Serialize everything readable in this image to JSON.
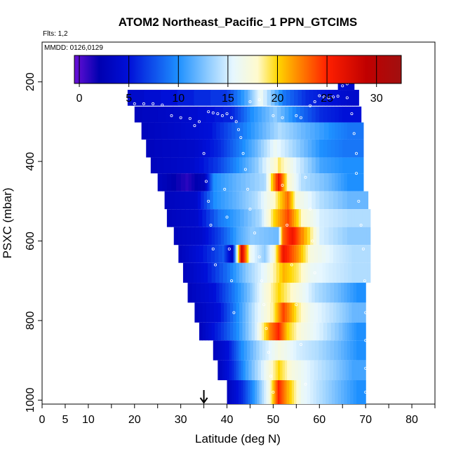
{
  "chart_data": {
    "type": "heatmap",
    "title": "ATOM2 Northeast_Pacific_1 PPN_GTCIMS",
    "flights_label": "Flts: 1,2",
    "dates_label": "MMDD: 0126,0129",
    "xlabel": "Latitude (deg N)",
    "ylabel": "PSXC (mbar)",
    "xlim": [
      0,
      85
    ],
    "ylim": [
      1010,
      100
    ],
    "x_tick_labels": [
      "0",
      "5",
      "10",
      "20",
      "30",
      "40",
      "50",
      "60",
      "70",
      "80"
    ],
    "x_tick_values": [
      0,
      5,
      10,
      20,
      30,
      40,
      50,
      60,
      70,
      80
    ],
    "x_minor_ticks": [
      15,
      25,
      35,
      45,
      55,
      65,
      75,
      85
    ],
    "y_tick_labels": [
      "200",
      "400",
      "600",
      "800",
      "1000"
    ],
    "y_tick_values": [
      200,
      400,
      600,
      800,
      1000
    ],
    "colorbar": {
      "min": -0.5,
      "max": 32.5,
      "tick_labels": [
        "0",
        "5",
        "10",
        "15",
        "20",
        "25",
        "30"
      ],
      "tick_values": [
        0,
        5,
        10,
        15,
        20,
        25,
        30
      ],
      "colors": [
        "#6a0fd6",
        "#0000b0",
        "#0010d8",
        "#1e90ff",
        "#8ecbff",
        "#e6f7ff",
        "#fffacd",
        "#ffd700",
        "#ff8c00",
        "#ff2000",
        "#c00000",
        "#a01010"
      ],
      "color_stops": [
        -0.5,
        2,
        5,
        10,
        13,
        15.5,
        18,
        20,
        22,
        25,
        29,
        32.5
      ]
    },
    "marker_lat": 35,
    "pressure_bands": [
      {
        "p_top": 220,
        "p_bot": 260,
        "lat_start": 18.5,
        "lat_end": 68.5,
        "segments": [
          [
            18.5,
            4
          ],
          [
            40,
            7
          ],
          [
            44.5,
            12
          ],
          [
            47,
            16
          ],
          [
            52,
            9
          ],
          [
            57,
            6
          ],
          [
            62,
            5
          ],
          [
            66,
            4
          ]
        ]
      },
      {
        "p_top": 170,
        "p_bot": 220,
        "lat_start": 64,
        "lat_end": 67.5,
        "segments": [
          [
            64,
            4
          ]
        ]
      },
      {
        "p_top": 262,
        "p_bot": 302,
        "lat_start": 20,
        "lat_end": 69,
        "segments": [
          [
            20,
            3
          ],
          [
            30,
            4
          ],
          [
            41,
            6
          ],
          [
            45,
            10
          ],
          [
            50,
            13
          ],
          [
            55,
            9
          ],
          [
            60,
            6
          ],
          [
            65,
            5
          ]
        ]
      },
      {
        "p_top": 302,
        "p_bot": 345,
        "lat_start": 21.5,
        "lat_end": 69.5,
        "segments": [
          [
            21.5,
            3
          ],
          [
            30,
            4
          ],
          [
            36,
            5
          ],
          [
            41,
            8
          ],
          [
            46,
            11
          ],
          [
            51,
            14
          ],
          [
            56,
            12
          ],
          [
            62,
            10
          ],
          [
            66,
            9
          ]
        ]
      },
      {
        "p_top": 345,
        "p_bot": 390,
        "lat_start": 22.5,
        "lat_end": 69.5,
        "segments": [
          [
            22.5,
            3
          ],
          [
            33,
            4
          ],
          [
            38,
            6
          ],
          [
            42,
            9
          ],
          [
            46,
            12
          ],
          [
            50,
            16
          ],
          [
            55,
            13
          ],
          [
            60,
            10
          ],
          [
            65,
            9
          ]
        ]
      },
      {
        "p_top": 390,
        "p_bot": 430,
        "lat_start": 23.5,
        "lat_end": 69.5,
        "segments": [
          [
            23.5,
            3
          ],
          [
            32,
            4
          ],
          [
            38,
            7
          ],
          [
            42,
            10
          ],
          [
            46,
            13
          ],
          [
            51,
            19
          ],
          [
            55,
            15
          ],
          [
            60,
            11
          ],
          [
            65,
            10
          ]
        ]
      },
      {
        "p_top": 430,
        "p_bot": 475,
        "lat_start": 25,
        "lat_end": 69.5,
        "segments": [
          [
            25,
            3
          ],
          [
            31,
            1
          ],
          [
            35,
            3
          ],
          [
            37,
            10
          ],
          [
            42,
            12
          ],
          [
            48,
            14
          ],
          [
            51,
            26
          ],
          [
            53,
            18
          ],
          [
            56,
            14
          ],
          [
            62,
            12
          ],
          [
            66,
            10
          ]
        ]
      },
      {
        "p_top": 475,
        "p_bot": 520,
        "lat_start": 26.5,
        "lat_end": 70.5,
        "segments": [
          [
            26.5,
            3
          ],
          [
            33,
            4
          ],
          [
            37,
            10
          ],
          [
            42,
            12
          ],
          [
            46,
            14
          ],
          [
            50,
            18
          ],
          [
            53,
            23
          ],
          [
            55,
            17
          ],
          [
            60,
            14
          ],
          [
            66,
            12
          ]
        ]
      },
      {
        "p_top": 520,
        "p_bot": 565,
        "lat_start": 27,
        "lat_end": 71,
        "segments": [
          [
            27,
            3
          ],
          [
            33,
            4
          ],
          [
            38,
            9
          ],
          [
            42,
            11
          ],
          [
            47,
            14
          ],
          [
            50,
            20
          ],
          [
            53,
            24
          ],
          [
            56,
            18
          ],
          [
            60,
            15
          ],
          [
            66,
            14
          ]
        ]
      },
      {
        "p_top": 565,
        "p_bot": 610,
        "lat_start": 28.5,
        "lat_end": 71,
        "segments": [
          [
            28.5,
            3
          ],
          [
            34,
            4
          ],
          [
            38,
            7
          ],
          [
            42,
            11
          ],
          [
            45,
            13
          ],
          [
            51,
            12
          ],
          [
            52,
            23
          ],
          [
            54,
            26
          ],
          [
            56,
            22
          ],
          [
            60,
            15
          ],
          [
            66,
            13
          ]
        ]
      },
      {
        "p_top": 610,
        "p_bot": 655,
        "lat_start": 29.5,
        "lat_end": 71,
        "segments": [
          [
            29.5,
            3
          ],
          [
            34,
            5
          ],
          [
            39,
            8
          ],
          [
            41,
            3
          ],
          [
            43,
            28
          ],
          [
            45,
            16
          ],
          [
            48,
            13
          ],
          [
            50,
            17
          ],
          [
            52,
            26
          ],
          [
            55,
            22
          ],
          [
            58,
            17
          ],
          [
            63,
            15
          ],
          [
            67,
            14
          ]
        ]
      },
      {
        "p_top": 655,
        "p_bot": 705,
        "lat_start": 30.5,
        "lat_end": 71,
        "segments": [
          [
            30.5,
            3
          ],
          [
            35,
            5
          ],
          [
            40,
            9
          ],
          [
            44,
            13
          ],
          [
            48,
            16
          ],
          [
            52,
            21
          ],
          [
            55,
            19
          ],
          [
            58,
            16
          ],
          [
            62,
            15
          ],
          [
            67,
            14
          ]
        ]
      },
      {
        "p_top": 705,
        "p_bot": 755,
        "lat_start": 31.5,
        "lat_end": 70,
        "segments": [
          [
            31.5,
            3
          ],
          [
            37,
            5
          ],
          [
            41,
            9
          ],
          [
            45,
            13
          ],
          [
            48,
            17
          ],
          [
            51,
            20
          ],
          [
            55,
            17
          ],
          [
            59,
            14
          ],
          [
            64,
            12
          ],
          [
            68,
            10
          ]
        ]
      },
      {
        "p_top": 755,
        "p_bot": 805,
        "lat_start": 33,
        "lat_end": 70,
        "segments": [
          [
            33,
            3
          ],
          [
            38,
            5
          ],
          [
            42,
            10
          ],
          [
            46,
            15
          ],
          [
            50,
            19
          ],
          [
            52,
            24
          ],
          [
            55,
            19
          ],
          [
            58,
            16
          ],
          [
            63,
            14
          ],
          [
            67,
            12
          ]
        ]
      },
      {
        "p_top": 805,
        "p_bot": 850,
        "lat_start": 34,
        "lat_end": 70,
        "segments": [
          [
            34,
            3
          ],
          [
            38,
            6
          ],
          [
            42,
            10
          ],
          [
            46,
            15
          ],
          [
            49,
            22
          ],
          [
            51,
            25
          ],
          [
            53,
            20
          ],
          [
            56,
            17
          ],
          [
            60,
            15
          ],
          [
            65,
            12
          ],
          [
            68,
            10
          ]
        ]
      },
      {
        "p_top": 850,
        "p_bot": 900,
        "lat_start": 37,
        "lat_end": 70,
        "segments": [
          [
            37,
            3
          ],
          [
            40,
            5
          ],
          [
            43,
            10
          ],
          [
            47,
            14
          ],
          [
            51,
            17
          ],
          [
            55,
            15
          ],
          [
            59,
            14
          ],
          [
            64,
            12
          ],
          [
            68,
            10
          ]
        ]
      },
      {
        "p_top": 900,
        "p_bot": 950,
        "lat_start": 38,
        "lat_end": 70,
        "segments": [
          [
            38,
            3
          ],
          [
            41,
            6
          ],
          [
            44,
            11
          ],
          [
            48,
            16
          ],
          [
            51,
            20
          ],
          [
            54,
            17
          ],
          [
            58,
            15
          ],
          [
            63,
            13
          ],
          [
            67,
            11
          ]
        ]
      },
      {
        "p_top": 950,
        "p_bot": 1010,
        "lat_start": 40,
        "lat_end": 70,
        "segments": [
          [
            40,
            3
          ],
          [
            43,
            6
          ],
          [
            46,
            11
          ],
          [
            49,
            17
          ],
          [
            51,
            25
          ],
          [
            53,
            21
          ],
          [
            56,
            16
          ],
          [
            60,
            14
          ],
          [
            64,
            12
          ],
          [
            68,
            10
          ]
        ]
      }
    ],
    "flight_track": [
      [
        18,
        255
      ],
      [
        20,
        255
      ],
      [
        22,
        255
      ],
      [
        24,
        255
      ],
      [
        26,
        258
      ],
      [
        28,
        285
      ],
      [
        30,
        290
      ],
      [
        32,
        292
      ],
      [
        33,
        310
      ],
      [
        34,
        300
      ],
      [
        35,
        380
      ],
      [
        35.5,
        450
      ],
      [
        36,
        500
      ],
      [
        36.5,
        560
      ],
      [
        37,
        620
      ],
      [
        37.5,
        660
      ],
      [
        36,
        275
      ],
      [
        37,
        278
      ],
      [
        38,
        280
      ],
      [
        39,
        285
      ],
      [
        40,
        280
      ],
      [
        41,
        290
      ],
      [
        42,
        300
      ],
      [
        42.5,
        320
      ],
      [
        43,
        340
      ],
      [
        43.5,
        380
      ],
      [
        44,
        420
      ],
      [
        44.5,
        470
      ],
      [
        45,
        520
      ],
      [
        46,
        580
      ],
      [
        47,
        640
      ],
      [
        47.5,
        700
      ],
      [
        48,
        760
      ],
      [
        48.5,
        820
      ],
      [
        49,
        880
      ],
      [
        49.5,
        940
      ],
      [
        50,
        980
      ],
      [
        45,
        250
      ],
      [
        47,
        245
      ],
      [
        50,
        285
      ],
      [
        52,
        290
      ],
      [
        55,
        285
      ],
      [
        56,
        290
      ],
      [
        58,
        260
      ],
      [
        59,
        250
      ],
      [
        60,
        235
      ],
      [
        61,
        238
      ],
      [
        62,
        240
      ],
      [
        63,
        238
      ],
      [
        64,
        236
      ],
      [
        65,
        210
      ],
      [
        66,
        205
      ],
      [
        67,
        200
      ],
      [
        68,
        430
      ],
      [
        68.5,
        500
      ],
      [
        69,
        560
      ],
      [
        69.5,
        620
      ],
      [
        69.8,
        700
      ],
      [
        70,
        780
      ],
      [
        70,
        850
      ],
      [
        70,
        920
      ],
      [
        70,
        980
      ],
      [
        66,
        240
      ],
      [
        67,
        280
      ],
      [
        67.5,
        330
      ],
      [
        68,
        380
      ],
      [
        57,
        440
      ],
      [
        58,
        520
      ],
      [
        58.5,
        600
      ],
      [
        59,
        680
      ],
      [
        52,
        460
      ],
      [
        53,
        560
      ],
      [
        54,
        660
      ],
      [
        55,
        760
      ],
      [
        56,
        860
      ],
      [
        57,
        960
      ],
      [
        39.5,
        470
      ],
      [
        40,
        540
      ],
      [
        40.5,
        620
      ],
      [
        41,
        700
      ],
      [
        41.5,
        780
      ]
    ]
  }
}
